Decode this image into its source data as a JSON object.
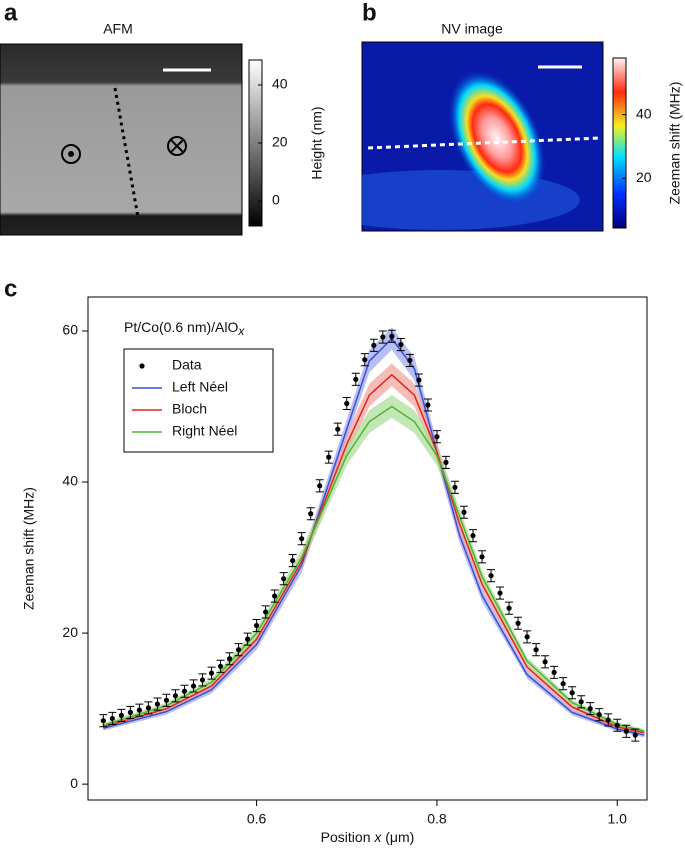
{
  "chart_data": [
    {
      "type": "image",
      "panel": "a",
      "title": "AFM",
      "colormap": "gray",
      "colorbar": {
        "label": "Height (nm)",
        "lim": [
          -8.6,
          48.6
        ],
        "ticks": [
          0,
          20,
          40
        ]
      }
    },
    {
      "type": "image",
      "panel": "b",
      "title": "NV image",
      "colormap": "jet",
      "colorbar": {
        "label": "Zeeman shift (MHz)",
        "lim": [
          4.4,
          57.8
        ],
        "ticks": [
          20,
          40
        ]
      }
    },
    {
      "type": "line",
      "panel": "c",
      "annotation": {
        "text": "Pt/Co(0.6 nm)/AlO",
        "subscript": "x"
      },
      "xlabel": [
        "Position ",
        "x",
        " (μm)"
      ],
      "ylabel": "Zeeman shift (MHz)",
      "xlim": [
        0.413,
        1.033
      ],
      "ylim": [
        -2.1,
        64.5
      ],
      "xticks": [
        0.6,
        0.8,
        1.0
      ],
      "yticks": [
        0,
        20,
        40,
        60
      ],
      "xtick_labels": [
        "0.6",
        "0.8",
        "1.0"
      ],
      "series": [
        {
          "name": "Data",
          "color": "#000000",
          "style": "points",
          "x": [
            0.43,
            0.44,
            0.45,
            0.46,
            0.47,
            0.48,
            0.49,
            0.5,
            0.51,
            0.52,
            0.53,
            0.54,
            0.55,
            0.56,
            0.57,
            0.58,
            0.59,
            0.6,
            0.61,
            0.62,
            0.63,
            0.64,
            0.65,
            0.66,
            0.67,
            0.68,
            0.69,
            0.7,
            0.71,
            0.72,
            0.73,
            0.74,
            0.75,
            0.76,
            0.77,
            0.78,
            0.79,
            0.8,
            0.81,
            0.82,
            0.83,
            0.84,
            0.85,
            0.86,
            0.87,
            0.88,
            0.89,
            0.9,
            0.91,
            0.92,
            0.93,
            0.94,
            0.95,
            0.96,
            0.97,
            0.98,
            0.99,
            1.0,
            1.01,
            1.02
          ],
          "values": [
            8.4,
            8.7,
            9.1,
            9.5,
            9.8,
            10.1,
            10.6,
            11.1,
            11.7,
            12.3,
            13.0,
            13.8,
            14.7,
            15.6,
            16.6,
            17.8,
            19.2,
            21.0,
            22.8,
            24.9,
            27.2,
            29.6,
            32.5,
            35.8,
            39.5,
            43.3,
            47.0,
            50.4,
            53.6,
            56.2,
            58.1,
            59.2,
            59.3,
            58.2,
            56.1,
            53.5,
            50.2,
            46.0,
            42.6,
            39.3,
            36.0,
            32.9,
            30.1,
            27.6,
            25.3,
            23.3,
            21.3,
            19.5,
            17.8,
            16.2,
            14.8,
            13.3,
            12.1,
            10.9,
            10.0,
            9.2,
            8.5,
            7.8,
            7.0,
            6.5
          ],
          "errors": [
            0.8,
            0.8,
            0.8,
            0.8,
            0.8,
            0.8,
            0.8,
            0.8,
            0.8,
            0.8,
            0.8,
            0.8,
            0.8,
            0.8,
            0.8,
            0.8,
            0.8,
            0.8,
            0.8,
            0.8,
            0.8,
            0.8,
            0.8,
            0.8,
            0.8,
            0.8,
            0.8,
            0.8,
            0.8,
            0.8,
            0.8,
            0.8,
            0.8,
            0.8,
            0.8,
            0.8,
            0.8,
            0.8,
            0.8,
            0.8,
            0.8,
            0.8,
            0.8,
            0.8,
            0.8,
            0.8,
            0.8,
            0.8,
            0.8,
            0.8,
            0.8,
            0.8,
            0.8,
            0.8,
            0.8,
            0.8,
            0.8,
            0.8,
            0.8,
            0.8
          ]
        },
        {
          "name": "Left Néel",
          "color": "#3a4fd6",
          "band_color": "#9aa4ee",
          "style": "line",
          "x": [
            0.43,
            0.5,
            0.55,
            0.6,
            0.65,
            0.7,
            0.725,
            0.75,
            0.775,
            0.8,
            0.825,
            0.85,
            0.9,
            0.95,
            1.0,
            1.03
          ],
          "values": [
            7.4,
            9.6,
            12.5,
            18.5,
            29,
            47,
            56,
            59,
            55,
            44,
            33,
            25,
            14.5,
            9.5,
            7.3,
            6.5
          ],
          "band": [
            0.3,
            0.4,
            0.5,
            0.7,
            1,
            1.3,
            1.5,
            1.5,
            1.5,
            1.3,
            1,
            0.8,
            0.5,
            0.4,
            0.3,
            0.3
          ]
        },
        {
          "name": "Bloch",
          "color": "#e0261c",
          "band_color": "#f2a09a",
          "style": "line",
          "x": [
            0.43,
            0.5,
            0.55,
            0.6,
            0.65,
            0.7,
            0.725,
            0.75,
            0.775,
            0.8,
            0.825,
            0.85,
            0.9,
            0.95,
            1.0,
            1.03
          ],
          "values": [
            7.6,
            10,
            13,
            19.2,
            29.5,
            45,
            51.5,
            54.2,
            51.5,
            44,
            34.5,
            26.5,
            15.5,
            10.2,
            7.6,
            6.8
          ],
          "band": [
            0.3,
            0.4,
            0.5,
            0.7,
            1,
            1.3,
            1.5,
            1.5,
            1.5,
            1.3,
            1,
            0.8,
            0.5,
            0.4,
            0.3,
            0.3
          ]
        },
        {
          "name": "Right Néel",
          "color": "#4fb332",
          "band_color": "#a8dd94",
          "style": "line",
          "x": [
            0.43,
            0.5,
            0.55,
            0.6,
            0.65,
            0.7,
            0.725,
            0.75,
            0.775,
            0.8,
            0.825,
            0.85,
            0.9,
            0.95,
            1.0,
            1.03
          ],
          "values": [
            7.8,
            10.4,
            13.5,
            20,
            30,
            43.5,
            48,
            50,
            48,
            43.5,
            35.5,
            27.5,
            16.3,
            10.8,
            7.9,
            7.0
          ],
          "band": [
            0.3,
            0.4,
            0.5,
            0.7,
            1,
            1.3,
            1.5,
            1.5,
            1.5,
            1.3,
            1,
            0.8,
            0.5,
            0.4,
            0.3,
            0.3
          ]
        }
      ]
    }
  ]
}
